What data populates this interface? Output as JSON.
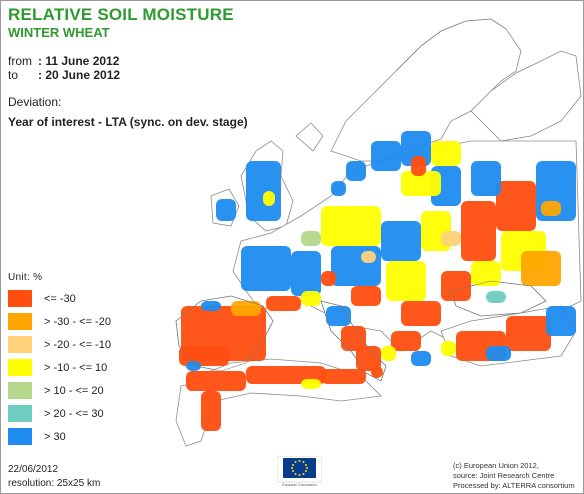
{
  "header": {
    "title": "RELATIVE SOIL MOISTURE",
    "subtitle": "WINTER WHEAT"
  },
  "period": {
    "from_label": "from",
    "from_value": ": 11 June 2012",
    "to_label": "to",
    "to_value": ": 20 June 2012"
  },
  "deviation": {
    "label": "Deviation:",
    "value": "Year of interest - LTA (sync. on dev. stage)"
  },
  "legend": {
    "unit": "Unit:  %",
    "classes": [
      {
        "label": "<= -30",
        "color": "#ff4e0f"
      },
      {
        "label": "> -30 - <= -20",
        "color": "#ffa500"
      },
      {
        "label": "> -20 - <= -10",
        "color": "#ffd27a"
      },
      {
        "label": "> -10 - <= 10",
        "color": "#ffff00"
      },
      {
        "label": "> 10 - <= 20",
        "color": "#b4d78c"
      },
      {
        "label": "> 20 - <= 30",
        "color": "#6ecdc0"
      },
      {
        "label": "> 30",
        "color": "#1e8cf0"
      }
    ]
  },
  "footer": {
    "date": "22/06/2012",
    "resolution": "resolution: 25x25 km",
    "logo_caption": "European Commission",
    "credit_line1": "(c) European Union 2012,",
    "credit_line2": "source: Joint Research Centre",
    "credit_line3": "Processed by: ALTERRA consortium"
  },
  "icons": {
    "eu_flag": "eu-flag-icon",
    "map": "europe-soil-moisture-map"
  }
}
